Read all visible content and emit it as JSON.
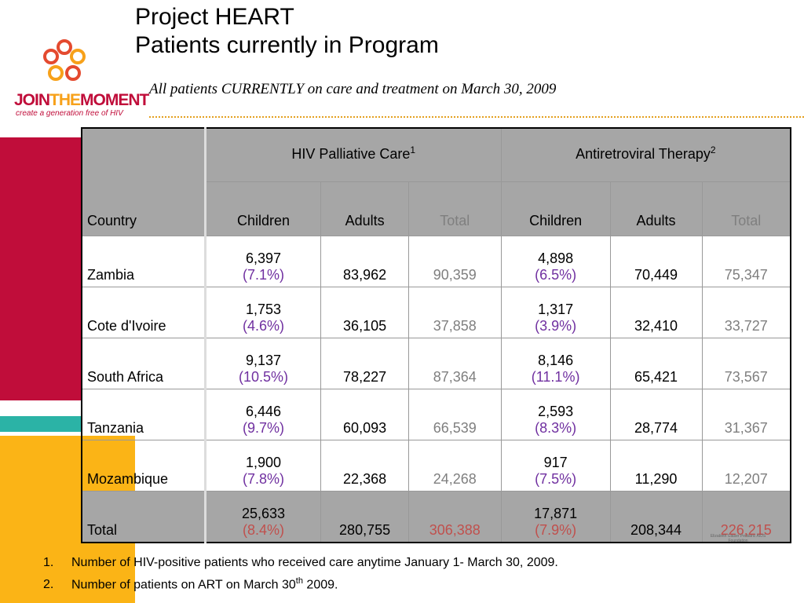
{
  "header": {
    "title": [
      "Project HEART",
      "Patients currently in Program"
    ],
    "subtitle": "All patients CURRENTLY on care and treatment on March 30, 2009"
  },
  "logo": {
    "name_parts": [
      "JOIN",
      "THE",
      "MOMENT"
    ],
    "tagline": "create a generation free of HIV",
    "partner": "Elizabeth Glaser Pediatric AIDS Foundation"
  },
  "table": {
    "groups": [
      {
        "label": "HIV Palliative Care",
        "note": "1"
      },
      {
        "label": "Antiretroviral Therapy",
        "note": "2"
      }
    ],
    "columns": [
      "Country",
      "Children",
      "Adults",
      "Total",
      "Children",
      "Adults",
      "Total"
    ],
    "rows": [
      [
        "Zambia",
        "6,397",
        "(7.1%)",
        "83,962",
        "90,359",
        "4,898",
        "(6.5%)",
        "70,449",
        "75,347"
      ],
      [
        "Cote d'Ivoire",
        "1,753",
        "(4.6%)",
        "36,105",
        "37,858",
        "1,317",
        "(3.9%)",
        "32,410",
        "33,727"
      ],
      [
        "South Africa",
        "9,137",
        "(10.5%)",
        "78,227",
        "87,364",
        "8,146",
        "(11.1%)",
        "65,421",
        "73,567"
      ],
      [
        "Tanzania",
        "6,446",
        "(9.7%)",
        "60,093",
        "66,539",
        "2,593",
        "(8.3%)",
        "28,774",
        "31,367"
      ],
      [
        "Mozambique",
        "1,900",
        "(7.8%)",
        "22,368",
        "24,268",
        "917",
        "(7.5%)",
        "11,290",
        "12,207"
      ],
      [
        "Total",
        "25,633",
        "(8.4%)",
        "280,755",
        "306,388",
        "17,871",
        "(7.9%)",
        "208,344",
        "226,215"
      ]
    ]
  },
  "footnotes": [
    {
      "number": "1.",
      "parts": [
        "Number of HIV-positive patients who received care anytime January 1- March 30, 2009."
      ]
    },
    {
      "number": "2.",
      "parts": [
        "Number of patients on ART on March 30",
        "th",
        " 2009."
      ]
    }
  ]
}
